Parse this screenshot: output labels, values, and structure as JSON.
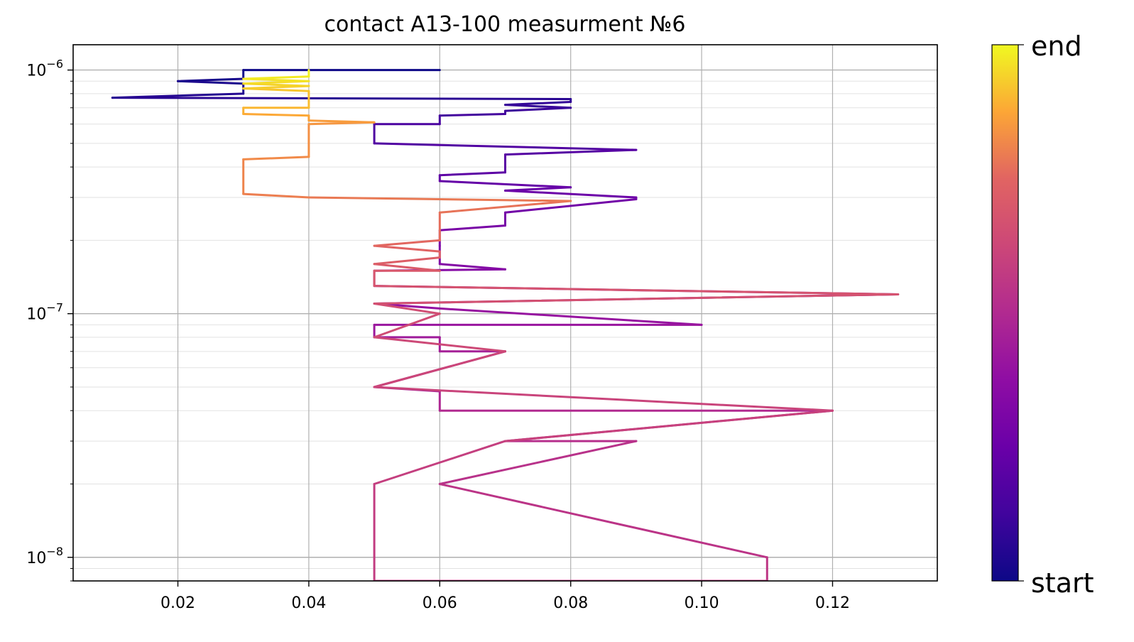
{
  "chart_data": {
    "type": "line",
    "title": "contact A13-100 measurment №6",
    "xlabel": "",
    "ylabel": "",
    "yscale": "log",
    "grid": true,
    "xlim": [
      0.004,
      0.136
    ],
    "ylim": [
      8e-09,
      1.27e-06
    ],
    "x_ticks": [
      0.02,
      0.04,
      0.06,
      0.08,
      0.1,
      0.12
    ],
    "x_tick_labels": [
      "0.02",
      "0.04",
      "0.06",
      "0.08",
      "0.10",
      "0.12"
    ],
    "y_ticks": [
      1e-08,
      1e-07,
      1e-06
    ],
    "y_tick_labels": [
      {
        "base": "10",
        "exp": "−8"
      },
      {
        "base": "10",
        "exp": "−7"
      },
      {
        "base": "10",
        "exp": "−6"
      }
    ],
    "colormap": "plasma",
    "colorbar": {
      "min_label": "start",
      "max_label": "end"
    },
    "points": [
      [
        0.06,
        1e-06
      ],
      [
        0.03,
        1e-06
      ],
      [
        0.03,
        9.2e-07
      ],
      [
        0.02,
        9e-07
      ],
      [
        0.03,
        8.8e-07
      ],
      [
        0.03,
        8e-07
      ],
      [
        0.01,
        7.7e-07
      ],
      [
        0.08,
        7.6e-07
      ],
      [
        0.08,
        7.4e-07
      ],
      [
        0.07,
        7.2e-07
      ],
      [
        0.08,
        7e-07
      ],
      [
        0.07,
        6.8e-07
      ],
      [
        0.07,
        6.6e-07
      ],
      [
        0.06,
        6.5e-07
      ],
      [
        0.06,
        6e-07
      ],
      [
        0.05,
        6e-07
      ],
      [
        0.05,
        5e-07
      ],
      [
        0.09,
        4.7e-07
      ],
      [
        0.07,
        4.5e-07
      ],
      [
        0.07,
        3.8e-07
      ],
      [
        0.06,
        3.7e-07
      ],
      [
        0.06,
        3.5e-07
      ],
      [
        0.08,
        3.3e-07
      ],
      [
        0.07,
        3.2e-07
      ],
      [
        0.09,
        3e-07
      ],
      [
        0.09,
        2.95e-07
      ],
      [
        0.07,
        2.6e-07
      ],
      [
        0.07,
        2.3e-07
      ],
      [
        0.06,
        2.2e-07
      ],
      [
        0.06,
        1.9e-07
      ],
      [
        0.06,
        1.6e-07
      ],
      [
        0.07,
        1.52e-07
      ],
      [
        0.05,
        1.5e-07
      ],
      [
        0.05,
        1.3e-07
      ],
      [
        0.13,
        1.2e-07
      ],
      [
        0.05,
        1.1e-07
      ],
      [
        0.06,
        1.05e-07
      ],
      [
        0.1,
        9e-08
      ],
      [
        0.05,
        9e-08
      ],
      [
        0.05,
        8e-08
      ],
      [
        0.06,
        8e-08
      ],
      [
        0.06,
        7e-08
      ],
      [
        0.07,
        7e-08
      ],
      [
        0.05,
        5e-08
      ],
      [
        0.06,
        4.8e-08
      ],
      [
        0.06,
        4e-08
      ],
      [
        0.12,
        4e-08
      ],
      [
        0.07,
        3e-08
      ],
      [
        0.09,
        3e-08
      ],
      [
        0.06,
        2e-08
      ],
      [
        0.11,
        1e-08
      ],
      [
        0.11,
        8e-09
      ],
      [
        0.05,
        8e-09
      ],
      [
        0.05,
        2e-08
      ],
      [
        0.07,
        3e-08
      ],
      [
        0.12,
        4e-08
      ],
      [
        0.05,
        5e-08
      ],
      [
        0.07,
        7e-08
      ],
      [
        0.05,
        8e-08
      ],
      [
        0.06,
        1e-07
      ],
      [
        0.05,
        1.1e-07
      ],
      [
        0.13,
        1.2e-07
      ],
      [
        0.05,
        1.3e-07
      ],
      [
        0.05,
        1.5e-07
      ],
      [
        0.06,
        1.5e-07
      ],
      [
        0.05,
        1.6e-07
      ],
      [
        0.06,
        1.7e-07
      ],
      [
        0.06,
        1.8e-07
      ],
      [
        0.05,
        1.9e-07
      ],
      [
        0.06,
        2e-07
      ],
      [
        0.06,
        2.6e-07
      ],
      [
        0.08,
        2.9e-07
      ],
      [
        0.04,
        3e-07
      ],
      [
        0.03,
        3.1e-07
      ],
      [
        0.03,
        4.3e-07
      ],
      [
        0.04,
        4.4e-07
      ],
      [
        0.04,
        6e-07
      ],
      [
        0.05,
        6.1e-07
      ],
      [
        0.04,
        6.2e-07
      ],
      [
        0.04,
        6.5e-07
      ],
      [
        0.03,
        6.6e-07
      ],
      [
        0.03,
        7e-07
      ],
      [
        0.04,
        7e-07
      ],
      [
        0.04,
        8.2e-07
      ],
      [
        0.03,
        8.4e-07
      ],
      [
        0.04,
        8.6e-07
      ],
      [
        0.03,
        8.8e-07
      ],
      [
        0.04,
        9e-07
      ],
      [
        0.03,
        9.2e-07
      ],
      [
        0.04,
        9.4e-07
      ],
      [
        0.04,
        1e-06
      ]
    ]
  }
}
